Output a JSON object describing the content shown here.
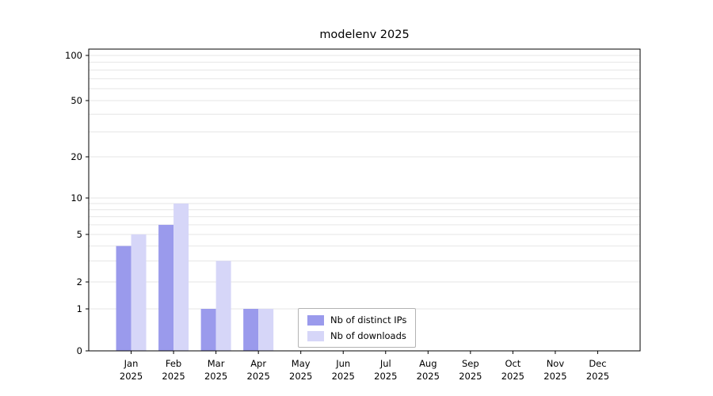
{
  "figure": {
    "title": "modelenv 2025"
  },
  "chart_data": {
    "type": "bar",
    "title": "modelenv 2025",
    "categories": [
      "Jan",
      "Feb",
      "Mar",
      "Apr",
      "May",
      "Jun",
      "Jul",
      "Aug",
      "Sep",
      "Oct",
      "Nov",
      "Dec"
    ],
    "year_label": "2025",
    "series": [
      {
        "name": "Nb of distinct IPs",
        "color": "#9a9aec",
        "values": [
          4,
          6,
          1,
          1,
          0,
          0,
          0,
          0,
          0,
          0,
          0,
          0
        ]
      },
      {
        "name": "Nb of downloads",
        "color": "#d6d6f8",
        "values": [
          5,
          9,
          3,
          1,
          0,
          0,
          0,
          0,
          0,
          0,
          0,
          0
        ]
      }
    ],
    "xlabel": "",
    "ylabel": "",
    "yscale": "log-like (0 baseline, log above 1)",
    "ytick_labels": [
      "0",
      "1",
      "2",
      "5",
      "10",
      "20",
      "50",
      "100"
    ],
    "yticks": [
      0,
      1,
      2,
      5,
      10,
      20,
      50,
      100
    ],
    "gridline_values": [
      1,
      2,
      3,
      4,
      5,
      6,
      7,
      8,
      9,
      10,
      20,
      30,
      40,
      50,
      60,
      70,
      80,
      90,
      100
    ],
    "ylim": [
      0,
      100
    ],
    "grid": true,
    "legend_position": "lower center"
  },
  "colors": {
    "grid": "#e6e6e6",
    "axis": "#000000",
    "background": "#ffffff",
    "text": "#000000"
  }
}
